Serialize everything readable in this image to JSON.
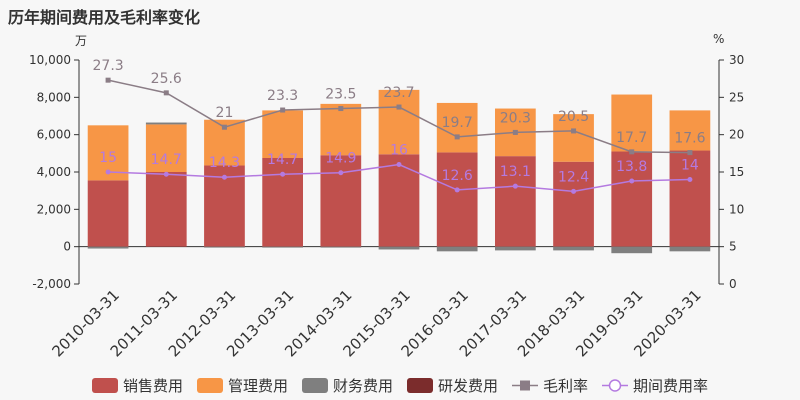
{
  "title": "历年期间费用及毛利率变化",
  "left_unit": "万",
  "right_unit": "%",
  "colors": {
    "sales": "#c0504d",
    "admin": "#f79646",
    "finance": "#7f7f7f",
    "rnd": "#7b2c2c",
    "gross_margin": "#8b7d86",
    "period_rate": "#b47ae0"
  },
  "legend": [
    {
      "key": "sales",
      "label": "销售费用",
      "kind": "bar"
    },
    {
      "key": "admin",
      "label": "管理费用",
      "kind": "bar"
    },
    {
      "key": "finance",
      "label": "财务费用",
      "kind": "bar"
    },
    {
      "key": "rnd",
      "label": "研发费用",
      "kind": "bar"
    },
    {
      "key": "gross_margin",
      "label": "毛利率",
      "kind": "line-square"
    },
    {
      "key": "period_rate",
      "label": "期间费用率",
      "kind": "line-circle"
    }
  ],
  "chart_data": {
    "type": "bar",
    "categories": [
      "2010-03-31",
      "2011-03-31",
      "2012-03-31",
      "2013-03-31",
      "2014-03-31",
      "2015-03-31",
      "2016-03-31",
      "2017-03-31",
      "2018-03-31",
      "2019-03-31",
      "2020-03-31"
    ],
    "series": [
      {
        "name": "销售费用",
        "key": "sales",
        "values": [
          3550,
          4000,
          4350,
          4750,
          4900,
          4950,
          5050,
          4850,
          4550,
          5100,
          5150
        ]
      },
      {
        "name": "管理费用",
        "key": "admin",
        "values": [
          2950,
          2550,
          2450,
          2550,
          2750,
          3450,
          2650,
          2550,
          2550,
          3050,
          2150
        ]
      },
      {
        "name": "财务费用",
        "key": "finance",
        "values": [
          -100,
          100,
          -50,
          -50,
          -50,
          -150,
          -250,
          -200,
          -200,
          -350,
          -250
        ]
      },
      {
        "name": "研发费用",
        "key": "rnd",
        "values": [
          0,
          0,
          0,
          0,
          0,
          0,
          0,
          0,
          0,
          0,
          0
        ]
      },
      {
        "name": "毛利率",
        "key": "gross_margin",
        "axis": "right",
        "values": [
          27.3,
          25.6,
          21,
          23.3,
          23.5,
          23.7,
          19.7,
          20.3,
          20.5,
          17.7,
          17.6
        ]
      },
      {
        "name": "期间费用率",
        "key": "period_rate",
        "axis": "right",
        "values": [
          15,
          14.7,
          14.3,
          14.7,
          14.9,
          16,
          12.6,
          13.1,
          12.4,
          13.8,
          14
        ]
      }
    ],
    "y_left": {
      "min": -2000,
      "max": 10000,
      "ticks": [
        "-2,000",
        "0",
        "2,000",
        "4,000",
        "6,000",
        "8,000",
        "10,000"
      ]
    },
    "y_right": {
      "min": 0,
      "max": 30,
      "ticks": [
        "0",
        "5",
        "10",
        "15",
        "20",
        "25",
        "30"
      ]
    },
    "grid": false,
    "legend_position": "bottom"
  }
}
